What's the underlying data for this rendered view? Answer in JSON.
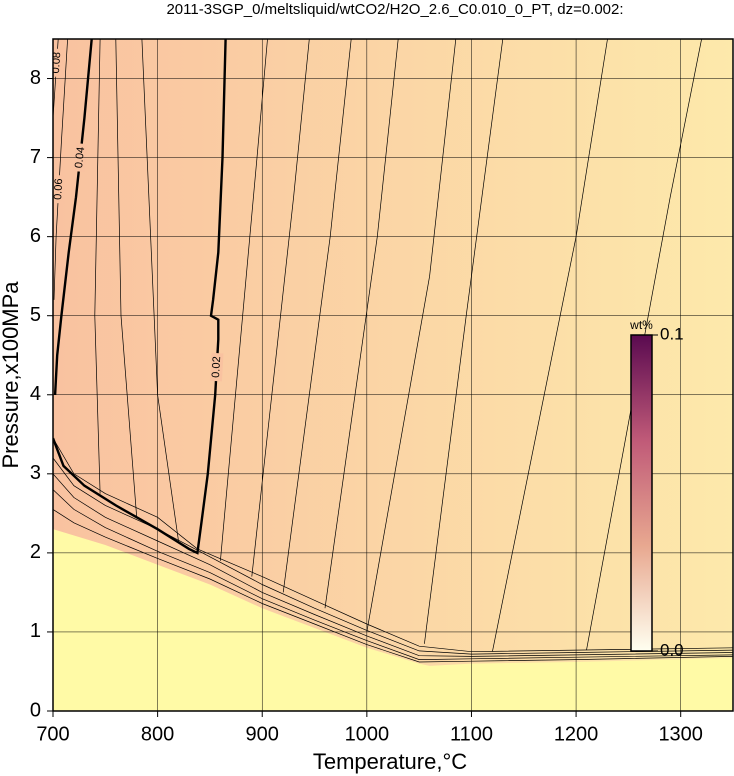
{
  "chart_data": {
    "type": "contour",
    "title": "2011-3SGP_0/meltsliquid/wtCO2/H2O_2.6_C0.010_0_PT, dz=0.002:",
    "x_label": "Temperature,°C",
    "y_label": "Pressure,x100MPa",
    "xlim": [
      700,
      1350
    ],
    "ylim": [
      0,
      8.5
    ],
    "xticks": [
      700,
      800,
      900,
      1000,
      1100,
      1200,
      1300
    ],
    "yticks": [
      0,
      1,
      2,
      3,
      4,
      5,
      6,
      7,
      8
    ],
    "grid": true,
    "field_colors": [
      "#f9c2a0",
      "#fde9ab"
    ],
    "low_color": "#fffaa6",
    "line_color": "#000000",
    "low_boundary": {
      "x": [
        700,
        750,
        800,
        850,
        900,
        950,
        1000,
        1050,
        1060,
        1100,
        1200,
        1350
      ],
      "y": [
        2.3,
        2.1,
        1.85,
        1.6,
        1.3,
        1.05,
        0.8,
        0.6,
        0.57,
        0.6,
        0.62,
        0.67
      ]
    },
    "contours": [
      {
        "level": 0.02,
        "bold": true,
        "x": [
          865,
          862,
          858,
          853,
          851,
          858,
          858,
          855,
          848,
          842,
          838,
          830,
          800,
          760,
          730,
          710,
          700
        ],
        "y": [
          8.5,
          7,
          5.8,
          5.2,
          5.0,
          4.95,
          4.7,
          4.0,
          3.0,
          2.4,
          2.0,
          2.05,
          2.3,
          2.6,
          2.85,
          3.1,
          3.45
        ]
      },
      {
        "level": 0.04,
        "bold": true,
        "x": [
          737,
          730,
          722,
          715,
          708,
          704,
          702
        ],
        "y": [
          8.5,
          7.5,
          6.5,
          5.8,
          5.0,
          4.5,
          4.0
        ]
      },
      {
        "level": 0.06,
        "x": [
          714,
          708,
          703,
          701
        ],
        "y": [
          8.5,
          7.2,
          6.0,
          5.2
        ]
      },
      {
        "level": 0.08,
        "x": [
          705,
          702,
          700
        ],
        "y": [
          8.5,
          7.9,
          7.5
        ]
      },
      {
        "x": [
          1055,
          1095,
          1130
        ],
        "y": [
          0.85,
          5.0,
          8.5
        ]
      },
      {
        "x": [
          1000,
          1060,
          1085
        ],
        "y": [
          1.0,
          5.5,
          8.5
        ]
      },
      {
        "x": [
          960,
          1010,
          1030
        ],
        "y": [
          1.3,
          6.0,
          8.5
        ]
      },
      {
        "x": [
          920,
          965,
          985
        ],
        "y": [
          1.5,
          6.0,
          8.5
        ]
      },
      {
        "x": [
          890,
          930,
          945
        ],
        "y": [
          1.7,
          6.5,
          8.5
        ]
      },
      {
        "x": [
          860,
          895,
          905
        ],
        "y": [
          1.9,
          7.0,
          8.5
        ]
      },
      {
        "x": [
          820,
          800,
          785
        ],
        "y": [
          2.15,
          4.0,
          8.5
        ]
      },
      {
        "x": [
          780,
          765,
          760
        ],
        "y": [
          2.45,
          5.0,
          8.5
        ]
      },
      {
        "x": [
          745,
          740,
          745
        ],
        "y": [
          2.75,
          5.0,
          8.5
        ]
      },
      {
        "x": [
          1120,
          1200,
          1230
        ],
        "y": [
          0.75,
          6.0,
          8.5
        ]
      },
      {
        "x": [
          1210,
          1290,
          1320
        ],
        "y": [
          0.77,
          6.5,
          8.5
        ]
      },
      {
        "x": [
          700,
          720,
          750,
          800,
          838,
          900,
          950,
          1000,
          1050,
          1100,
          1200,
          1350
        ],
        "y": [
          3.45,
          3.0,
          2.75,
          2.45,
          2.05,
          1.7,
          1.4,
          1.1,
          0.82,
          0.75,
          0.77,
          0.8
        ]
      },
      {
        "x": [
          700,
          720,
          750,
          800,
          850,
          900,
          950,
          1000,
          1050,
          1100,
          1200,
          1350
        ],
        "y": [
          3.2,
          2.85,
          2.6,
          2.3,
          1.95,
          1.6,
          1.3,
          1.02,
          0.76,
          0.72,
          0.74,
          0.77
        ]
      },
      {
        "x": [
          700,
          720,
          750,
          800,
          850,
          900,
          950,
          1000,
          1050,
          1100,
          1200,
          1350
        ],
        "y": [
          3.0,
          2.7,
          2.45,
          2.15,
          1.85,
          1.5,
          1.22,
          0.95,
          0.7,
          0.69,
          0.71,
          0.74
        ]
      },
      {
        "x": [
          700,
          720,
          750,
          800,
          850,
          900,
          950,
          1000,
          1050,
          1100,
          1200,
          1350
        ],
        "y": [
          2.8,
          2.55,
          2.32,
          2.02,
          1.75,
          1.42,
          1.15,
          0.89,
          0.65,
          0.66,
          0.68,
          0.71
        ]
      },
      {
        "x": [
          700,
          720,
          750,
          800,
          850,
          900,
          950,
          1000,
          1050,
          1100,
          1200,
          1350
        ],
        "y": [
          2.55,
          2.38,
          2.2,
          1.93,
          1.67,
          1.36,
          1.1,
          0.84,
          0.62,
          0.63,
          0.65,
          0.69
        ]
      }
    ],
    "colorbar": {
      "title": "wt%",
      "lim": [
        0,
        0.1
      ],
      "ticks": [
        {
          "value": 0,
          "label": "0.0"
        },
        0.1
      ],
      "colors": [
        "#fffff0",
        "#e8a890",
        "#c05a78",
        "#5a0a50"
      ]
    }
  }
}
